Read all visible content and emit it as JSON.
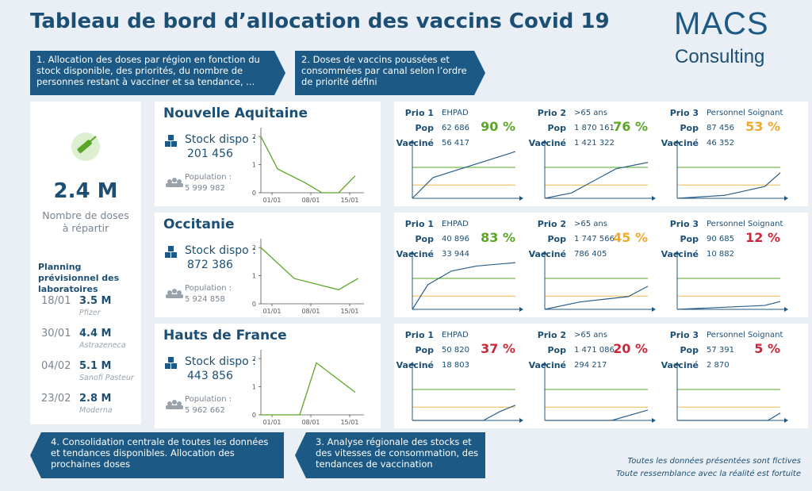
{
  "header": {
    "title": "Tableau de bord d’allocation des vaccins Covid 19",
    "logo": {
      "brand": "MACS",
      "tagline": "Consulting"
    }
  },
  "steps": [
    {
      "text": "1. Allocation des doses par région en fonction du stock disponible, des priorités, du nombre de personnes restant à vacciner et sa tendance, ..."
    },
    {
      "text": "2. Doses de vaccins poussées et consommées par canal selon l’ordre de priorité défini"
    },
    {
      "text": "4. Consolidation centrale de toutes les données et tendances disponibles. Allocation des prochaines doses"
    },
    {
      "text": "3. Analyse régionale des stocks et des vitesses de consommation, des tendances de vaccination"
    }
  ],
  "summary": {
    "total": "2.4 M",
    "total_label": "Nombre de doses à répartir",
    "planning_title": "Planning prévisionnel des laboratoires",
    "deliveries": [
      {
        "date": "18/01",
        "amount": "3.5 M",
        "lab": "Pfizer"
      },
      {
        "date": "30/01",
        "amount": "4.4 M",
        "lab": "Astrazeneca"
      },
      {
        "date": "04/02",
        "amount": "5.1 M",
        "lab": "Sanofi Pasteur"
      },
      {
        "date": "23/02",
        "amount": "2.8 M",
        "lab": "Moderna"
      }
    ]
  },
  "labels": {
    "stock": "Stock dispo :",
    "population": "Population :",
    "pop": "Pop",
    "vaccinated": "Vacciné"
  },
  "region_chart": {
    "type": "line",
    "color": "#5aa626",
    "xlim": [
      0,
      18
    ],
    "ylim": [
      0,
      2.2
    ],
    "yticks": [
      0,
      1,
      2
    ],
    "xticks": [
      {
        "value": 2,
        "label": "01/01"
      },
      {
        "value": 9,
        "label": "08/01"
      },
      {
        "value": 16,
        "label": "15/01"
      }
    ]
  },
  "priority_chart": {
    "type": "line",
    "color": "#2d5f8a",
    "xlim": [
      0,
      10
    ],
    "ylim": [
      0,
      100
    ],
    "thresholds": [
      63,
      27
    ],
    "threshold_colors": [
      "#5aa626",
      "#f2b84b"
    ]
  },
  "regions": [
    {
      "name": "Nouvelle Aquitaine",
      "stock": "201 456",
      "population": "5 999 982",
      "chart": {
        "x": [
          0,
          3,
          8,
          11,
          14,
          17
        ],
        "values": [
          2,
          0.85,
          0.35,
          0,
          0,
          0.6
        ]
      },
      "priorities": [
        {
          "prio": "Prio 1",
          "group": "EHPAD",
          "pop": "62 686",
          "vaccinated": "56 417",
          "pct": "90 %",
          "color": "#5aa626",
          "x": [
            0,
            2,
            10
          ],
          "values": [
            0,
            42,
            95
          ]
        },
        {
          "prio": "Prio 2",
          "group": ">65 ans",
          "pop": "1 870 161",
          "vaccinated": "1 421 322",
          "pct": "76 %",
          "color": "#5aa626",
          "x": [
            0,
            2.6,
            6.9,
            10
          ],
          "values": [
            0,
            11,
            60,
            73
          ]
        },
        {
          "prio": "Prio 3",
          "group": "Personnel Soignant",
          "pop": "87 456",
          "vaccinated": "46 352",
          "pct": "53 %",
          "color": "#f0a830",
          "x": [
            0,
            4.6,
            8.5,
            10
          ],
          "values": [
            0,
            6,
            24,
            52
          ]
        }
      ]
    },
    {
      "name": "Occitanie",
      "stock": "872 386",
      "population": "5 924 858",
      "chart": {
        "x": [
          0,
          6,
          14,
          17.5
        ],
        "values": [
          2,
          0.9,
          0.5,
          0.9
        ]
      },
      "priorities": [
        {
          "prio": "Prio 1",
          "group": "EHPAD",
          "pop": "40 896",
          "vaccinated": "33 944",
          "pct": "83 %",
          "color": "#5aa626",
          "x": [
            0,
            1.5,
            3.8,
            6.2,
            10
          ],
          "values": [
            0,
            50,
            78,
            88,
            95
          ]
        },
        {
          "prio": "Prio 2",
          "group": ">65 ans",
          "pop": "1 747 566",
          "vaccinated": "786 405",
          "pct": "45 %",
          "color": "#f0a830",
          "x": [
            0,
            3.4,
            8.1,
            10
          ],
          "values": [
            0,
            15,
            26,
            47
          ]
        },
        {
          "prio": "Prio 3",
          "group": "Personnel Soignant",
          "pop": "90 685",
          "vaccinated": "10 882",
          "pct": "12 %",
          "color": "#c8283a",
          "x": [
            0,
            8.5,
            10
          ],
          "values": [
            0,
            8,
            16
          ]
        }
      ]
    },
    {
      "name": "Hauts de France",
      "stock": "443 856",
      "population": "5 962 662",
      "chart": {
        "x": [
          0,
          7,
          10,
          17
        ],
        "values": [
          0,
          0,
          1.85,
          0.8
        ]
      },
      "priorities": [
        {
          "prio": "Prio 1",
          "group": "EHPAD",
          "pop": "50 820",
          "vaccinated": "18 803",
          "pct": "37 %",
          "color": "#c8283a",
          "x": [
            0,
            6.9,
            8.5,
            10
          ],
          "values": [
            0,
            0,
            18,
            31
          ]
        },
        {
          "prio": "Prio 2",
          "group": ">65 ans",
          "pop": "1 471 086",
          "vaccinated": "294 217",
          "pct": "20 %",
          "color": "#c8283a",
          "x": [
            0,
            6.5,
            10
          ],
          "values": [
            0,
            0,
            21
          ]
        },
        {
          "prio": "Prio 3",
          "group": "Personnel Soignant",
          "pop": "57 391",
          "vaccinated": "2 870",
          "pct": "5 %",
          "color": "#c8283a",
          "x": [
            0,
            8.8,
            10
          ],
          "values": [
            0,
            0,
            15
          ]
        }
      ]
    }
  ],
  "footnote": [
    "Toutes les données présentées sont fictives",
    "Toute ressemblance avec la réalité est fortuite"
  ]
}
